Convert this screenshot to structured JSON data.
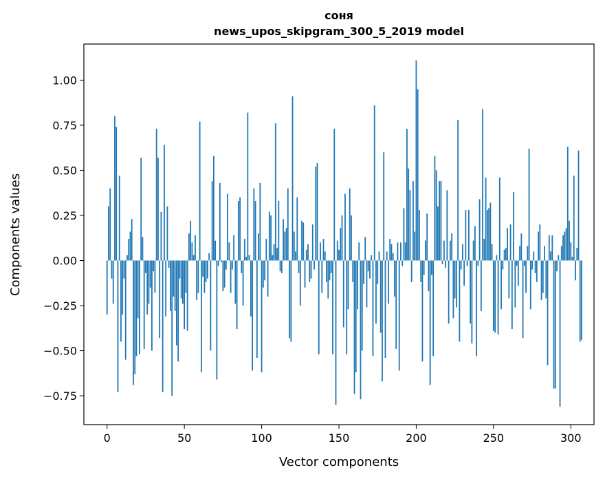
{
  "chart_data": {
    "type": "bar",
    "title": "соня",
    "subtitle": "news_upos_skipgram_300_5_2019 model",
    "xlabel": "Vector components",
    "ylabel": "Components values",
    "xlim": [
      -15,
      315
    ],
    "ylim": [
      -0.91,
      1.2
    ],
    "xticks": [
      0,
      50,
      100,
      150,
      200,
      250,
      300
    ],
    "yticks": [
      -0.75,
      -0.5,
      -0.25,
      0.0,
      0.25,
      0.5,
      0.75,
      1.0
    ],
    "ytick_labels": [
      "−0.75",
      "−0.50",
      "−0.25",
      "0.00",
      "0.25",
      "0.50",
      "0.75",
      "1.00"
    ],
    "xtick_labels": [
      "0",
      "50",
      "100",
      "150",
      "200",
      "250",
      "300"
    ],
    "bar_color": "#1f77b4",
    "grid": false,
    "legend": "none",
    "values": [
      -0.3,
      0.3,
      0.4,
      -0.1,
      -0.24,
      0.8,
      0.74,
      -0.73,
      0.47,
      -0.45,
      -0.3,
      -0.1,
      -0.55,
      0.03,
      0.12,
      0.16,
      0.23,
      -0.69,
      -0.63,
      -0.53,
      -0.32,
      -0.52,
      0.57,
      0.13,
      -0.49,
      -0.07,
      -0.3,
      -0.24,
      -0.15,
      -0.5,
      -0.06,
      -0.18,
      0.73,
      0.57,
      -0.43,
      0.27,
      -0.73,
      0.64,
      -0.31,
      0.3,
      -0.04,
      -0.28,
      -0.75,
      -0.2,
      -0.28,
      -0.47,
      -0.56,
      -0.1,
      -0.21,
      -0.24,
      -0.38,
      -0.18,
      -0.39,
      0.15,
      0.22,
      0.1,
      0.03,
      0.14,
      -0.22,
      -0.18,
      0.77,
      -0.62,
      -0.09,
      -0.18,
      -0.12,
      -0.1,
      0.04,
      -0.5,
      0.44,
      0.58,
      0.11,
      -0.66,
      -0.03,
      0.43,
      -0.01,
      -0.17,
      -0.15,
      -0.05,
      0.37,
      0.1,
      -0.18,
      -0.05,
      0.14,
      -0.24,
      -0.38,
      0.33,
      0.35,
      -0.07,
      -0.25,
      0.12,
      0.02,
      0.82,
      0.03,
      -0.31,
      -0.61,
      0.4,
      0.33,
      -0.54,
      0.15,
      0.43,
      -0.62,
      -0.15,
      -0.11,
      0.12,
      -0.2,
      0.27,
      0.25,
      0.03,
      0.09,
      0.76,
      0.07,
      0.33,
      -0.06,
      -0.07,
      0.23,
      0.16,
      0.18,
      0.4,
      -0.43,
      -0.45,
      0.91,
      0.16,
      0.05,
      0.35,
      -0.07,
      -0.25,
      0.22,
      0.21,
      -0.15,
      0.06,
      0.09,
      -0.12,
      -0.1,
      0.2,
      -0.05,
      0.52,
      0.54,
      -0.52,
      0.1,
      -0.18,
      0.12,
      0.05,
      -0.12,
      -0.21,
      -0.11,
      -0.07,
      -0.52,
      0.73,
      -0.8,
      0.11,
      0.06,
      0.18,
      0.25,
      -0.37,
      0.37,
      -0.52,
      -0.27,
      0.4,
      0.25,
      -0.12,
      -0.74,
      -0.62,
      -0.27,
      0.1,
      -0.77,
      -0.5,
      -0.13,
      0.13,
      -0.26,
      -0.06,
      -0.1,
      0.03,
      -0.53,
      0.86,
      -0.35,
      -0.13,
      0.05,
      -0.4,
      -0.67,
      0.6,
      -0.54,
      0.05,
      -0.24,
      0.12,
      0.09,
      0.04,
      -0.2,
      -0.49,
      0.1,
      -0.61,
      0.1,
      -0.03,
      0.29,
      0.1,
      0.73,
      0.51,
      0.39,
      -0.12,
      0.44,
      0.16,
      1.11,
      0.95,
      0.28,
      -0.12,
      -0.56,
      -0.08,
      0.11,
      0.26,
      -0.17,
      -0.69,
      -0.08,
      -0.53,
      0.58,
      0.5,
      0.3,
      0.44,
      0.44,
      -0.02,
      0.11,
      -0.04,
      0.39,
      -0.35,
      0.11,
      0.15,
      -0.32,
      -0.21,
      -0.26,
      0.78,
      -0.45,
      -0.05,
      0.09,
      -0.14,
      0.28,
      -0.03,
      0.28,
      -0.35,
      -0.46,
      0.11,
      0.19,
      -0.53,
      -0.03,
      0.34,
      -0.28,
      0.84,
      0.12,
      0.46,
      0.28,
      0.29,
      0.32,
      0.09,
      -0.39,
      -0.4,
      0.03,
      -0.41,
      0.46,
      -0.27,
      -0.05,
      0.06,
      0.07,
      0.18,
      -0.21,
      0.2,
      -0.38,
      0.38,
      -0.26,
      -0.03,
      -0.14,
      0.08,
      0.15,
      -0.43,
      -0.03,
      -0.18,
      0.08,
      0.62,
      -0.27,
      -0.05,
      0.05,
      -0.07,
      -0.12,
      0.16,
      0.2,
      -0.22,
      -0.18,
      0.08,
      -0.21,
      -0.58,
      0.14,
      0.05,
      0.14,
      -0.71,
      -0.71,
      -0.06,
      0.03,
      -0.81,
      0.08,
      0.14,
      0.16,
      0.18,
      0.63,
      0.22,
      0.1,
      0.02,
      0.47,
      -0.11,
      0.07,
      0.61,
      -0.45,
      -0.44
    ]
  }
}
